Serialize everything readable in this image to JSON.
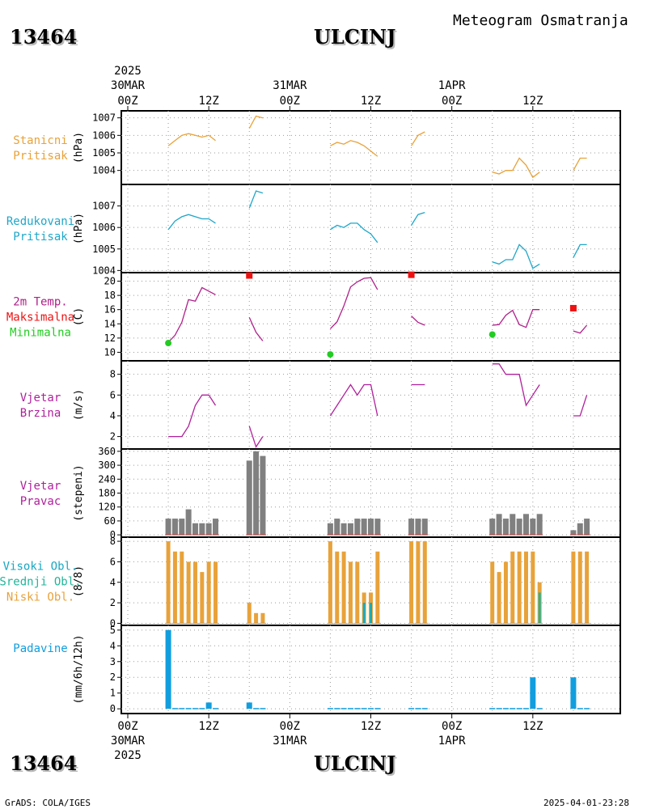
{
  "header": {
    "station_id": "13464",
    "station_name": "ULCINJ",
    "product": "Meteogram Osmatranja"
  },
  "footer": {
    "station_id": "13464",
    "station_name": "ULCINJ",
    "credit": "GrADS: COLA/IGES",
    "timestamp": "2025-04-01-23:28"
  },
  "time_axis": {
    "start_hour": 0,
    "end_hour": 72,
    "ticks": [
      {
        "hour": 0,
        "label": "00Z",
        "date": "30MAR",
        "year": "2025"
      },
      {
        "hour": 12,
        "label": "12Z"
      },
      {
        "hour": 24,
        "label": "00Z",
        "date": "31MAR"
      },
      {
        "hour": 36,
        "label": "12Z"
      },
      {
        "hour": 48,
        "label": "00Z",
        "date": "1APR"
      },
      {
        "hour": 60,
        "label": "12Z"
      }
    ]
  },
  "colors": {
    "station_pressure": "#e8a23a",
    "reduced_pressure": "#1fa7c9",
    "temperature": "#b0208a",
    "tmax": "#ee1111",
    "tmin": "#22cc22",
    "wind_speed": "#b0209c",
    "wind_dir": "#808080",
    "high_cloud": "#19a7c2",
    "mid_cloud": "#21b59a",
    "low_cloud": "#e8a23a",
    "precip": "#119ede"
  },
  "chart_data": [
    {
      "type": "line",
      "id": "station_pressure",
      "label_lines": [
        "Stanicni",
        "Pritisak"
      ],
      "ylabel": "(hPa)",
      "ylim": [
        1003.2,
        1007.4
      ],
      "yticks": [
        1004,
        1005,
        1006,
        1007
      ],
      "grid": true,
      "segments": [
        {
          "x": [
            6,
            7,
            8,
            9,
            10,
            11,
            12,
            13
          ],
          "y": [
            1005.4,
            1005.7,
            1006.0,
            1006.1,
            1006.0,
            1005.9,
            1006.0,
            1005.7
          ]
        },
        {
          "x": [
            18,
            19,
            20
          ],
          "y": [
            1006.4,
            1007.1,
            1007.0
          ]
        },
        {
          "x": [
            30,
            31,
            32,
            33,
            34,
            35,
            36,
            37
          ],
          "y": [
            1005.4,
            1005.6,
            1005.5,
            1005.7,
            1005.6,
            1005.4,
            1005.1,
            1004.8
          ]
        },
        {
          "x": [
            42,
            43,
            44
          ],
          "y": [
            1005.4,
            1006.0,
            1006.2
          ]
        },
        {
          "x": [
            54,
            55,
            56,
            57,
            58,
            59,
            60,
            61
          ],
          "y": [
            1003.9,
            1003.8,
            1004.0,
            1004.0,
            1004.7,
            1004.3,
            1003.6,
            1003.9
          ]
        },
        {
          "x": [
            66,
            67,
            68
          ],
          "y": [
            1004.0,
            1004.7,
            1004.7
          ]
        }
      ]
    },
    {
      "type": "line",
      "id": "reduced_pressure",
      "label_lines": [
        "Redukovani",
        "Pritisak"
      ],
      "ylabel": "(hPa)",
      "ylim": [
        1003.9,
        1008.0
      ],
      "yticks": [
        1004,
        1005,
        1006,
        1007
      ],
      "grid": true,
      "segments": [
        {
          "x": [
            6,
            7,
            8,
            9,
            10,
            11,
            12,
            13
          ],
          "y": [
            1005.9,
            1006.3,
            1006.5,
            1006.6,
            1006.5,
            1006.4,
            1006.4,
            1006.2
          ]
        },
        {
          "x": [
            18,
            19,
            20
          ],
          "y": [
            1006.9,
            1007.7,
            1007.6
          ]
        },
        {
          "x": [
            30,
            31,
            32,
            33,
            34,
            35,
            36,
            37
          ],
          "y": [
            1005.9,
            1006.1,
            1006.0,
            1006.2,
            1006.2,
            1005.9,
            1005.7,
            1005.3
          ]
        },
        {
          "x": [
            42,
            43,
            44
          ],
          "y": [
            1006.1,
            1006.6,
            1006.7
          ]
        },
        {
          "x": [
            54,
            55,
            56,
            57,
            58,
            59,
            60,
            61
          ],
          "y": [
            1004.4,
            1004.3,
            1004.5,
            1004.5,
            1005.2,
            1004.9,
            1004.1,
            1004.3
          ]
        },
        {
          "x": [
            66,
            67,
            68
          ],
          "y": [
            1004.6,
            1005.2,
            1005.2
          ]
        }
      ]
    },
    {
      "type": "line",
      "id": "temperature",
      "label_lines": [
        "2m Temp.",
        "Maksimalna",
        "Minimalna"
      ],
      "ylabel": "(C)",
      "ylim": [
        8.8,
        21.2
      ],
      "yticks": [
        10,
        12,
        14,
        16,
        18,
        20
      ],
      "grid": true,
      "segments": [
        {
          "x": [
            6,
            7,
            8,
            9,
            10,
            11,
            12,
            13
          ],
          "y": [
            11.4,
            12.4,
            14.2,
            17.4,
            17.2,
            19.1,
            18.6,
            18.1
          ]
        },
        {
          "x": [
            18,
            19,
            20
          ],
          "y": [
            14.9,
            12.8,
            11.6
          ]
        },
        {
          "x": [
            30,
            31,
            32,
            33,
            34,
            35,
            36,
            37
          ],
          "y": [
            13.3,
            14.3,
            16.5,
            19.2,
            19.9,
            20.4,
            20.5,
            18.8
          ]
        },
        {
          "x": [
            42,
            43,
            44
          ],
          "y": [
            15.1,
            14.2,
            13.8
          ]
        },
        {
          "x": [
            54,
            55,
            56,
            57,
            58,
            59,
            60,
            61
          ],
          "y": [
            13.8,
            13.9,
            15.2,
            15.9,
            13.9,
            13.5,
            16.0,
            16.0
          ]
        },
        {
          "x": [
            66,
            67,
            68
          ],
          "y": [
            13.0,
            12.7,
            13.8
          ]
        }
      ],
      "tmax": [
        {
          "x": 18,
          "y": 20.8
        },
        {
          "x": 42,
          "y": 20.9
        },
        {
          "x": 66,
          "y": 16.2
        }
      ],
      "tmin": [
        {
          "x": 6,
          "y": 11.3
        },
        {
          "x": 30,
          "y": 9.7
        },
        {
          "x": 54,
          "y": 12.5
        }
      ]
    },
    {
      "type": "line",
      "id": "wind_speed",
      "label_lines": [
        "Vjetar",
        "Brzina"
      ],
      "ylabel": "(m/s)",
      "ylim": [
        0.8,
        9.3
      ],
      "yticks": [
        2,
        4,
        6,
        8
      ],
      "grid": true,
      "segments": [
        {
          "x": [
            6,
            7,
            8,
            9,
            10,
            11,
            12,
            13
          ],
          "y": [
            2,
            2,
            2,
            3,
            5,
            6,
            6,
            5
          ]
        },
        {
          "x": [
            18,
            19,
            20
          ],
          "y": [
            3,
            1,
            2
          ]
        },
        {
          "x": [
            30,
            31,
            32,
            33,
            34,
            35,
            36,
            37
          ],
          "y": [
            4,
            5,
            6,
            7,
            6,
            7,
            7,
            4
          ]
        },
        {
          "x": [
            42,
            43,
            44
          ],
          "y": [
            7,
            7,
            7
          ]
        },
        {
          "x": [
            54,
            55,
            56,
            57,
            58,
            59,
            60,
            61
          ],
          "y": [
            9,
            9,
            8,
            8,
            8,
            5,
            6,
            7
          ]
        },
        {
          "x": [
            66,
            67,
            68
          ],
          "y": [
            4,
            4,
            6
          ]
        }
      ]
    },
    {
      "type": "bar",
      "id": "wind_dir",
      "label_lines": [
        "Vjetar",
        "Pravac"
      ],
      "ylabel": "(stepeni)",
      "ylim": [
        -10,
        370
      ],
      "yticks": [
        0,
        60,
        120,
        180,
        240,
        300,
        360
      ],
      "ytick_labels": [
        "0",
        "60",
        "120",
        "180",
        "240",
        "300",
        "360"
      ],
      "grid": true,
      "x": [
        6,
        7,
        8,
        9,
        10,
        11,
        12,
        13,
        18,
        19,
        20,
        30,
        31,
        32,
        33,
        34,
        35,
        36,
        37,
        42,
        43,
        44,
        54,
        55,
        56,
        57,
        58,
        59,
        60,
        61,
        66,
        67,
        68
      ],
      "values": [
        70,
        70,
        70,
        110,
        50,
        50,
        50,
        70,
        320,
        360,
        340,
        50,
        70,
        50,
        50,
        70,
        70,
        70,
        70,
        70,
        70,
        70,
        70,
        90,
        70,
        90,
        70,
        90,
        70,
        90,
        20,
        50,
        70
      ]
    },
    {
      "type": "bar",
      "id": "clouds",
      "label_lines": [
        "Visoki Obl.",
        "Srednji Obl.",
        "Niski Obl."
      ],
      "ylabel": "(8/8)",
      "ylim": [
        -0.2,
        8.4
      ],
      "yticks": [
        0,
        2,
        4,
        6,
        8
      ],
      "grid": true,
      "x": [
        6,
        7,
        8,
        9,
        10,
        11,
        12,
        13,
        18,
        19,
        20,
        30,
        31,
        32,
        33,
        34,
        35,
        36,
        37,
        42,
        43,
        44,
        54,
        55,
        56,
        57,
        58,
        59,
        60,
        61,
        66,
        67,
        68
      ],
      "series": [
        {
          "name": "Niski Obl.",
          "values": [
            8,
            7,
            7,
            6,
            6,
            5,
            6,
            6,
            2,
            1,
            1,
            8,
            7,
            7,
            6,
            6,
            3,
            3,
            7,
            8,
            8,
            8,
            6,
            5,
            6,
            7,
            7,
            7,
            7,
            4,
            7,
            7,
            7
          ]
        },
        {
          "name": "Srednji Obl.",
          "values": [
            0,
            0,
            0,
            0,
            0,
            0,
            0,
            0,
            0,
            0,
            0,
            0,
            0,
            0,
            0,
            0,
            2,
            2,
            0,
            0,
            0,
            0,
            0,
            0,
            0,
            0,
            0,
            0,
            0,
            3,
            0,
            0,
            0
          ]
        },
        {
          "name": "Visoki Obl.",
          "values": [
            0,
            0,
            0,
            0,
            0,
            0,
            0,
            0,
            0,
            0,
            0,
            0,
            0,
            0,
            0,
            0,
            2,
            2,
            0,
            0,
            0,
            0,
            0,
            0,
            0,
            0,
            0,
            0,
            0,
            0,
            0,
            0,
            0
          ]
        }
      ]
    },
    {
      "type": "bar",
      "id": "precip",
      "label_lines": [
        "Padavine"
      ],
      "ylabel": "(mm/6h/12h)",
      "ylim": [
        -0.3,
        5.3
      ],
      "yticks": [
        0,
        1,
        2,
        3,
        4,
        5
      ],
      "grid": true,
      "x": [
        6,
        7,
        8,
        9,
        10,
        11,
        12,
        13,
        18,
        19,
        20,
        30,
        31,
        32,
        33,
        34,
        35,
        36,
        37,
        42,
        43,
        44,
        54,
        55,
        56,
        57,
        58,
        59,
        60,
        61,
        66,
        67,
        68
      ],
      "values": [
        5.0,
        0.05,
        0.05,
        0.05,
        0.05,
        0.05,
        0.4,
        0.05,
        0.4,
        0.05,
        0.05,
        0.05,
        0.05,
        0.05,
        0.05,
        0.05,
        0.05,
        0.05,
        0.05,
        0.05,
        0.05,
        0.05,
        0.05,
        0.05,
        0.05,
        0.05,
        0.05,
        0.05,
        2.0,
        0.05,
        2.0,
        0.05,
        0.05
      ]
    }
  ]
}
